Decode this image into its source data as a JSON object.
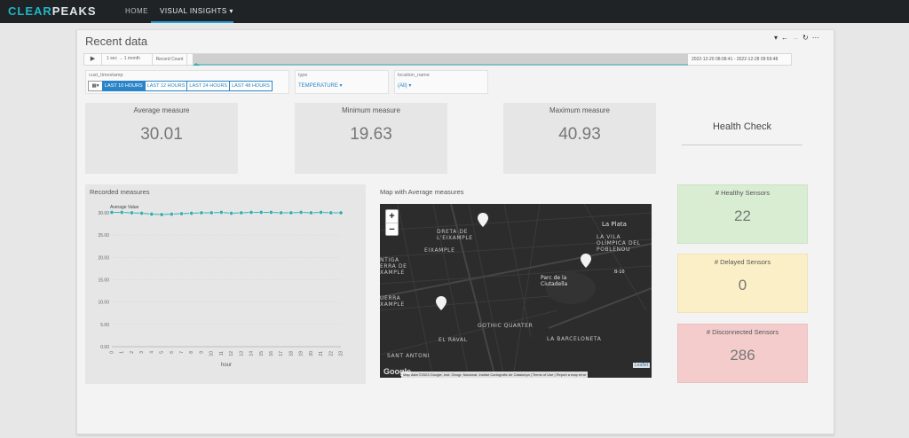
{
  "nav": {
    "logo_a": "CLEAR",
    "logo_b": "PEAKS",
    "home": "HOME",
    "visual_insights": "VISUAL INSIGHTS ▾"
  },
  "page": {
    "title": "Recent data",
    "toolbar": [
      "filter-icon",
      "back-icon",
      "forward-icon",
      "refresh-icon",
      "more-icon"
    ]
  },
  "timeline": {
    "play": "▶",
    "range": "1 sec → 1 month",
    "record_count": "Record Count",
    "dates": "2022-12-20 08:08:41 - 2022-12-28 09:59:48"
  },
  "filters": {
    "timestamp": {
      "label": "cust_timestamp",
      "buttons": [
        "LAST 10 HOURS",
        "LAST 12 HOURS",
        "LAST 24 HOURS",
        "LAST 48 HOURS"
      ],
      "active": "LAST 10 HOURS"
    },
    "type": {
      "label": "type",
      "value": "TEMPERATURE ▾"
    },
    "location": {
      "label": "location_name",
      "value": "(All) ▾"
    }
  },
  "kpis": {
    "average": {
      "label": "Average measure",
      "value": "30.01"
    },
    "minimum": {
      "label": "Minimum measure",
      "value": "19.63"
    },
    "maximum": {
      "label": "Maximum measure",
      "value": "40.93"
    },
    "health_check": "Health Check"
  },
  "chart_data": {
    "type": "line",
    "title": "Recorded measures",
    "series": [
      {
        "name": "Average Value",
        "values": [
          30.1,
          30.1,
          30.0,
          29.9,
          29.7,
          29.6,
          29.7,
          29.8,
          29.9,
          30.0,
          30.0,
          30.1,
          29.9,
          30.0,
          30.1,
          30.1,
          30.1,
          30.0,
          30.0,
          30.1,
          30.0,
          30.1,
          30.0,
          30.0
        ]
      }
    ],
    "x": [
      0,
      1,
      2,
      3,
      4,
      5,
      6,
      7,
      8,
      9,
      10,
      11,
      12,
      13,
      14,
      15,
      16,
      17,
      18,
      19,
      20,
      21,
      22,
      23
    ],
    "xlabel": "hour",
    "ylabel": "",
    "ylim": [
      0,
      30
    ],
    "yticks": [
      "0.00",
      "5.00",
      "10.00",
      "15.00",
      "20.00",
      "25.00",
      "30.00"
    ],
    "color": "#3aaeb0",
    "grid": true,
    "legend": "top-left"
  },
  "map": {
    "title": "Map with Average measures",
    "zoom_in": "+",
    "zoom_out": "−",
    "labels": [
      "DRETA DE\nL'EIXAMPLE",
      "EIXAMPLE",
      "La Plata",
      "LA VILA\nOLÍMPICA DEL\nPOBLENOU",
      "NTIGA\nERRA DE\nXAMPLE",
      "Parc de la\nCiutadella",
      "UERRA\nXAMPLE",
      "EL RAVAL",
      "GOTHIC QUARTER",
      "LA BARCELONETA",
      "SANT ANTONI",
      "B-10"
    ],
    "google": "Google",
    "attribution": "Map data ©2023 Google, Inst. Geogr. Nacional, Institut Cartogràfic de Catalunya | Terms of Use | Report a map error",
    "leaflet": "Leaflet",
    "marker_color": "#f2f2f2"
  },
  "status": {
    "healthy": {
      "label": "# Healthy Sensors",
      "value": "22",
      "color": "#d9edd3"
    },
    "delayed": {
      "label": "# Delayed Sensors",
      "value": "0",
      "color": "#fbefc7"
    },
    "disconnected": {
      "label": "# Disconnected Sensors",
      "value": "286",
      "color": "#f4cccc"
    }
  }
}
